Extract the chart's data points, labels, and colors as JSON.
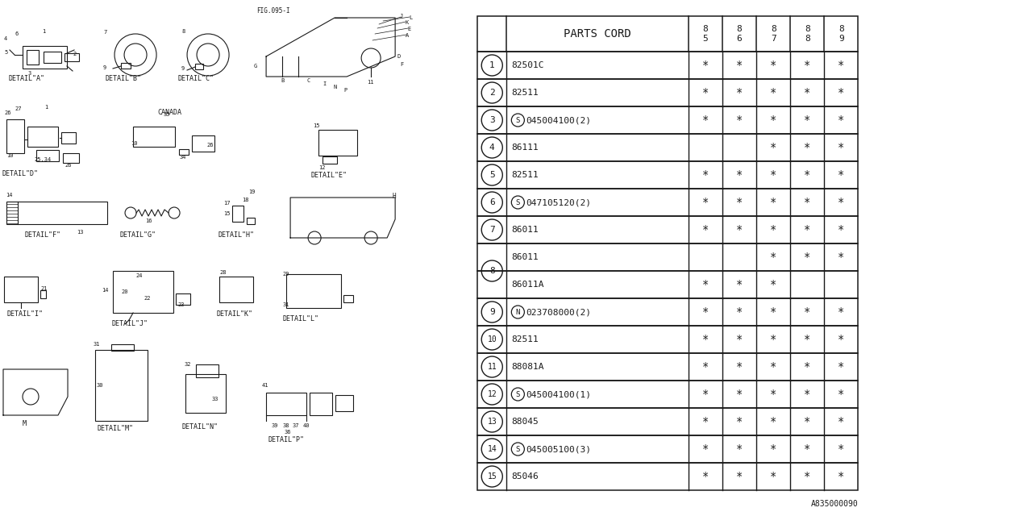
{
  "bg_color": "#ffffff",
  "line_color": "#1a1a1a",
  "part_id": "A835000090",
  "table": {
    "header_col": "PARTS CORD",
    "year_cols": [
      "8\n5",
      "8\n6",
      "8\n7",
      "8\n8",
      "8\n9"
    ],
    "rows": [
      {
        "num": "1",
        "part": "82501C",
        "years": [
          1,
          1,
          1,
          1,
          1
        ],
        "prefix": ""
      },
      {
        "num": "2",
        "part": "82511",
        "years": [
          1,
          1,
          1,
          1,
          1
        ],
        "prefix": ""
      },
      {
        "num": "3",
        "part": "045004100(2)",
        "years": [
          1,
          1,
          1,
          1,
          1
        ],
        "prefix": "S"
      },
      {
        "num": "4",
        "part": "86111",
        "years": [
          0,
          0,
          1,
          1,
          1
        ],
        "prefix": ""
      },
      {
        "num": "5",
        "part": "82511",
        "years": [
          1,
          1,
          1,
          1,
          1
        ],
        "prefix": ""
      },
      {
        "num": "6",
        "part": "047105120(2)",
        "years": [
          1,
          1,
          1,
          1,
          1
        ],
        "prefix": "S"
      },
      {
        "num": "7",
        "part": "86011",
        "years": [
          1,
          1,
          1,
          1,
          1
        ],
        "prefix": ""
      },
      {
        "num": "8",
        "part": "86011",
        "years": [
          0,
          0,
          1,
          1,
          1
        ],
        "prefix": "",
        "sub": true
      },
      {
        "num": "8",
        "part": "86011A",
        "years": [
          1,
          1,
          1,
          0,
          0
        ],
        "prefix": "",
        "sub": true
      },
      {
        "num": "9",
        "part": "023708000(2)",
        "years": [
          1,
          1,
          1,
          1,
          1
        ],
        "prefix": "N"
      },
      {
        "num": "10",
        "part": "82511",
        "years": [
          1,
          1,
          1,
          1,
          1
        ],
        "prefix": ""
      },
      {
        "num": "11",
        "part": "88081A",
        "years": [
          1,
          1,
          1,
          1,
          1
        ],
        "prefix": ""
      },
      {
        "num": "12",
        "part": "045004100(1)",
        "years": [
          1,
          1,
          1,
          1,
          1
        ],
        "prefix": "S"
      },
      {
        "num": "13",
        "part": "88045",
        "years": [
          1,
          1,
          1,
          1,
          1
        ],
        "prefix": ""
      },
      {
        "num": "14",
        "part": "045005100(3)",
        "years": [
          1,
          1,
          1,
          1,
          1
        ],
        "prefix": "S"
      },
      {
        "num": "15",
        "part": "85046",
        "years": [
          1,
          1,
          1,
          1,
          1
        ],
        "prefix": ""
      }
    ]
  }
}
